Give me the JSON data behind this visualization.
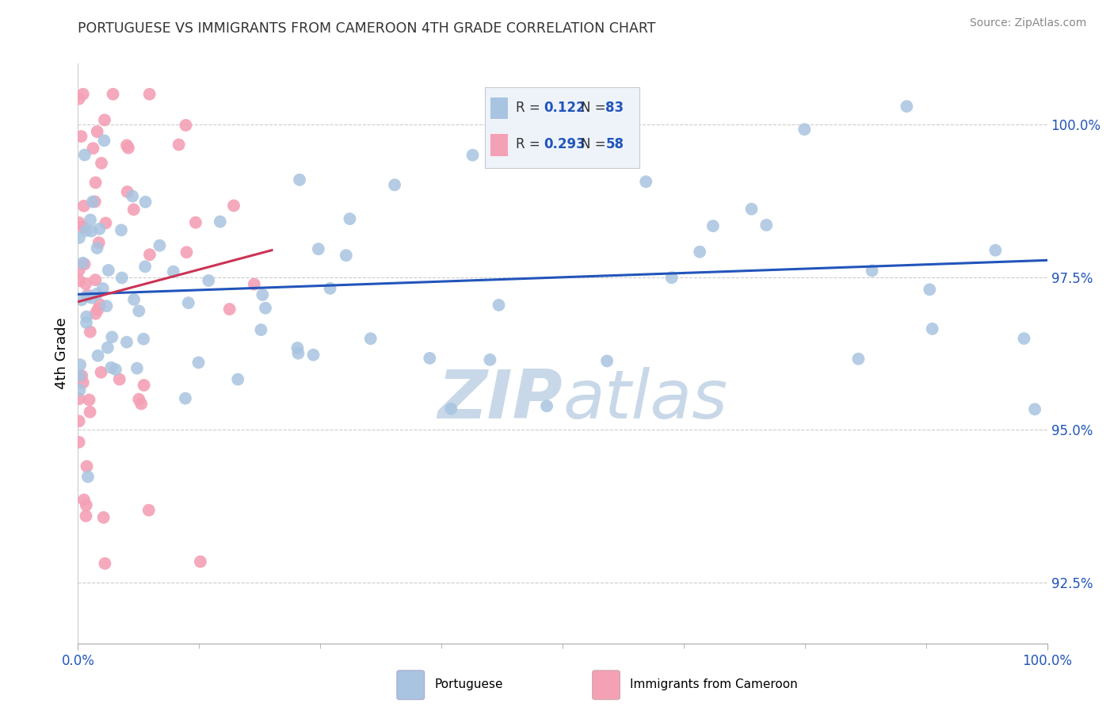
{
  "title": "PORTUGUESE VS IMMIGRANTS FROM CAMEROON 4TH GRADE CORRELATION CHART",
  "source": "Source: ZipAtlas.com",
  "ylabel": "4th Grade",
  "xlim": [
    0,
    100
  ],
  "ylim": [
    91.5,
    101.0
  ],
  "yticks": [
    92.5,
    95.0,
    97.5,
    100.0
  ],
  "ytick_labels": [
    "92.5%",
    "95.0%",
    "97.5%",
    "100.0%"
  ],
  "blue_R": 0.122,
  "blue_N": 83,
  "pink_R": 0.293,
  "pink_N": 58,
  "blue_color": "#a8c4e0",
  "pink_color": "#f4a0b5",
  "blue_line_color": "#2255bb",
  "pink_line_color": "#cc3355",
  "title_color": "#333333",
  "watermark_color": "#c8d8e8",
  "blue_scatter_seed": 77,
  "pink_scatter_seed": 55
}
